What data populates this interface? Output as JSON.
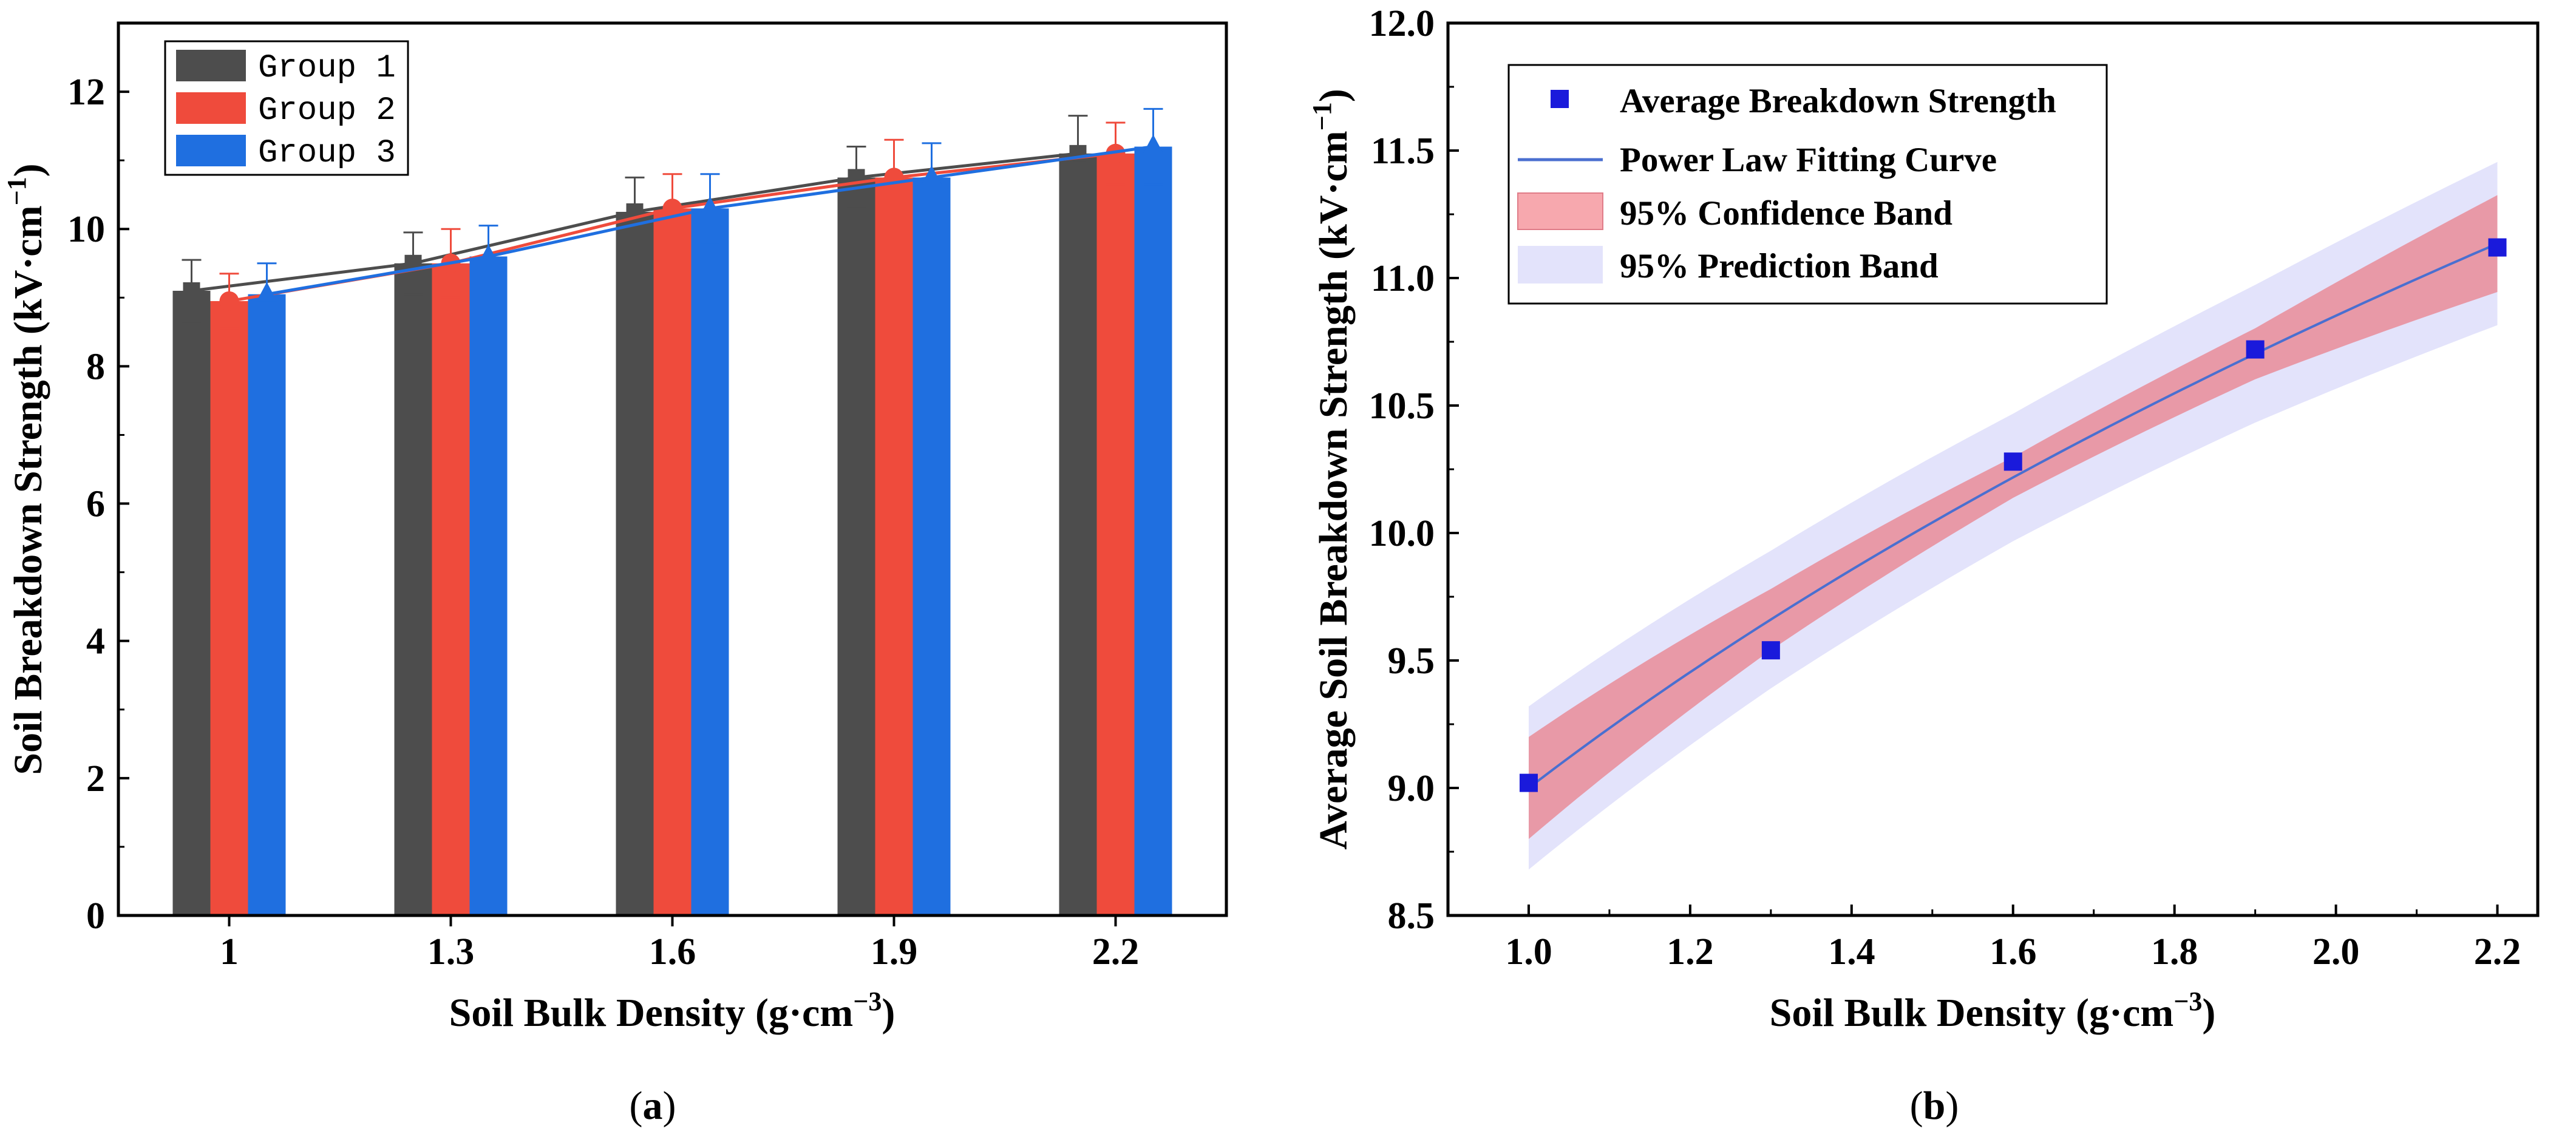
{
  "chart_data": [
    {
      "type": "bar",
      "panel_label": "a",
      "title": "",
      "xlabel_text": "Soil Bulk Density (g·cm",
      "xlabel_unit_exp": "−3",
      "xlabel_unit_close": ")",
      "ylabel_text": "Soil Breakdown Strength (kV·cm",
      "ylabel_unit_exp": "−1",
      "ylabel_unit_close": ")",
      "categories": [
        "1",
        "1.3",
        "1.6",
        "1.9",
        "2.2"
      ],
      "ylim": [
        0,
        13
      ],
      "yticks": [
        "0",
        "2",
        "4",
        "6",
        "8",
        "10",
        "12"
      ],
      "series": [
        {
          "name": "Group 1",
          "color": "#4d4d4d",
          "marker": "square",
          "values": [
            9.1,
            9.5,
            10.25,
            10.75,
            11.1
          ],
          "errors": [
            0.45,
            0.45,
            0.5,
            0.45,
            0.55
          ]
        },
        {
          "name": "Group 2",
          "color": "#ef4b3c",
          "marker": "circle",
          "values": [
            8.95,
            9.5,
            10.3,
            10.75,
            11.1
          ],
          "errors": [
            0.4,
            0.5,
            0.5,
            0.55,
            0.45
          ]
        },
        {
          "name": "Group 3",
          "color": "#1f6fe0",
          "marker": "triangle",
          "values": [
            9.05,
            9.6,
            10.3,
            10.75,
            11.2
          ],
          "errors": [
            0.45,
            0.45,
            0.5,
            0.5,
            0.55
          ]
        }
      ],
      "legend": {
        "position": "top-left",
        "entries": [
          "Group 1",
          "Group 2",
          "Group 3"
        ]
      }
    },
    {
      "type": "scatter",
      "panel_label": "b",
      "title": "",
      "xlabel_text": "Soil Bulk Density (g·cm",
      "xlabel_unit_exp": "−3",
      "xlabel_unit_close": ")",
      "ylabel_text": "Average Soil Breakdown Strength (kV·cm",
      "ylabel_unit_exp": "−1",
      "ylabel_unit_close": ")",
      "xlim": [
        0.9,
        2.25
      ],
      "ylim": [
        8.5,
        12.0
      ],
      "xticks": [
        {
          "v": 1.0,
          "label": "1.0"
        },
        {
          "v": 1.2,
          "label": "1.2"
        },
        {
          "v": 1.4,
          "label": "1.4"
        },
        {
          "v": 1.6,
          "label": "1.6"
        },
        {
          "v": 1.8,
          "label": "1.8"
        },
        {
          "v": 2.0,
          "label": "2.0"
        },
        {
          "v": 2.2,
          "label": "2.2"
        }
      ],
      "yticks": [
        {
          "v": 8.5,
          "label": "8.5"
        },
        {
          "v": 9.0,
          "label": "9.0"
        },
        {
          "v": 9.5,
          "label": "9.5"
        },
        {
          "v": 10.0,
          "label": "10.0"
        },
        {
          "v": 10.5,
          "label": "10.5"
        },
        {
          "v": 11.0,
          "label": "11.0"
        },
        {
          "v": 11.5,
          "label": "11.5"
        },
        {
          "v": 12.0,
          "label": "12.0"
        }
      ],
      "points": {
        "name": "Average Breakdown Strength",
        "color": "#1a1adb",
        "x": [
          1.0,
          1.3,
          1.6,
          1.9,
          2.2
        ],
        "y": [
          9.02,
          9.54,
          10.28,
          10.72,
          11.12
        ]
      },
      "fit": {
        "name": "Power Law Fitting Curve",
        "color": "#4a6fd0",
        "model": "y = a*x^b",
        "a": 9.0,
        "b": 0.27
      },
      "confidence_band": {
        "name": "95% Confidence Band",
        "color": "#f08f9a",
        "halfwidth_x": [
          1.0,
          1.3,
          1.6,
          1.9,
          2.2
        ],
        "halfwidth": [
          0.2,
          0.12,
          0.08,
          0.1,
          0.19
        ]
      },
      "prediction_band": {
        "name": "95% Prediction Band",
        "color": "#e3e3fb",
        "halfwidth_x": [
          1.0,
          1.3,
          1.6,
          1.9,
          2.2
        ],
        "halfwidth": [
          0.32,
          0.27,
          0.25,
          0.27,
          0.32
        ]
      },
      "legend": {
        "position": "top-left",
        "entries": [
          "Average Breakdown Strength",
          "Power Law Fitting Curve",
          "95% Confidence Band",
          "95% Prediction Band"
        ]
      }
    }
  ]
}
